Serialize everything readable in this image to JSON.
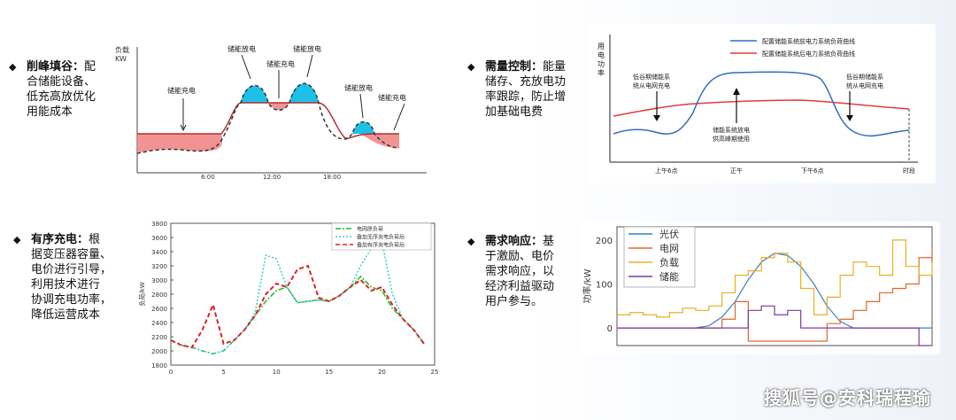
{
  "bullets": {
    "peak": {
      "title": "削峰填谷：",
      "lines": [
        "配",
        "合储能设备、",
        "低充高放优化",
        "用能成本"
      ]
    },
    "demand": {
      "title": "需量控制：",
      "lines": [
        "能量",
        "储存、充放电功",
        "率跟踪，防止增",
        "加基础电费"
      ]
    },
    "charging": {
      "title": "有序充电：",
      "lines": [
        "根",
        "据变压器容量、",
        "电价进行引导，",
        "利用技术进行",
        "协调充电功率，",
        "降低运营成本"
      ]
    },
    "response": {
      "title": "需求响应：",
      "lines": [
        "基",
        "于激励、电价",
        "需求响应，以",
        "经济利益驱动",
        "用户参与。"
      ]
    }
  },
  "chart1": {
    "ylabel_top": "负载",
    "ylabel_bot": "KW",
    "x_ticks": [
      "6:00",
      "12:00",
      "18:00"
    ],
    "annotations": [
      "储能充电",
      "储能放电",
      "储能充电",
      "储能放电",
      "储能放电",
      "储能充电"
    ]
  },
  "chart2": {
    "ylabel": [
      "用",
      "电",
      "功",
      "率"
    ],
    "legend": [
      "配置储能系统前电力系统负荷曲线",
      "配置储能系统后电力系统负荷曲线"
    ],
    "colors": {
      "before": "#2f6fbf",
      "after": "#e23b3b"
    },
    "annot_left": [
      "低谷期储能系",
      "统从电网充电"
    ],
    "annot_right": [
      "低谷期储能系",
      "统从电网充电"
    ],
    "annot_mid": [
      "储能系统放电",
      "供高峰期使用"
    ],
    "x_ticks": [
      "上午6点",
      "正午",
      "下午6点",
      "时段"
    ]
  },
  "chart_data": [
    {
      "type": "line",
      "title": "",
      "ylabel": "负荷/kW",
      "xlim": [
        0,
        25
      ],
      "ylim": [
        1800,
        3800
      ],
      "x_ticks": [
        "0",
        "5",
        "10",
        "15",
        "20",
        "25"
      ],
      "y_ticks": [
        "1800",
        "2000",
        "2200",
        "2400",
        "2600",
        "2800",
        "3000",
        "3200",
        "3400",
        "3600",
        "3800"
      ],
      "x": [
        0,
        1,
        2,
        3,
        4,
        5,
        6,
        7,
        8,
        9,
        10,
        11,
        12,
        13,
        14,
        15,
        16,
        17,
        18,
        19,
        20,
        21,
        22,
        23,
        24
      ],
      "series": [
        {
          "name": "电网原负荷",
          "values": [
            2150,
            2080,
            2050,
            2000,
            1960,
            2000,
            2150,
            2300,
            2500,
            2700,
            2850,
            2900,
            2680,
            2700,
            2720,
            2700,
            2780,
            2900,
            3050,
            2900,
            2850,
            2600,
            2450,
            2300,
            2100
          ]
        },
        {
          "name": "叠加无序充电负荷后",
          "values": [
            2150,
            2080,
            2050,
            2000,
            1960,
            2000,
            2150,
            2300,
            2550,
            3350,
            3300,
            2900,
            2680,
            2700,
            2720,
            2700,
            2780,
            2900,
            3200,
            3450,
            3550,
            2800,
            2450,
            2300,
            2100
          ]
        },
        {
          "name": "叠加有序充电负荷后",
          "values": [
            2150,
            2080,
            2050,
            2300,
            2650,
            2100,
            2150,
            2300,
            2500,
            2800,
            2950,
            2900,
            3150,
            3200,
            2750,
            2700,
            2780,
            2900,
            3000,
            2850,
            2900,
            2650,
            2450,
            2300,
            2100
          ]
        }
      ],
      "colors": [
        "#22bb22",
        "#33cccc",
        "#dd2222"
      ]
    },
    {
      "type": "line",
      "title": "",
      "ylabel": "功率/kW",
      "ylim": [
        -40,
        230
      ],
      "y_ticks": [
        "0",
        "100",
        "200"
      ],
      "x": [
        0,
        1,
        2,
        3,
        4,
        5,
        6,
        7,
        8,
        9,
        10,
        11,
        12,
        13,
        14,
        15,
        16,
        17,
        18,
        19,
        20,
        21,
        22,
        23,
        24
      ],
      "series": [
        {
          "name": "光伏",
          "values": [
            0,
            0,
            0,
            0,
            0,
            0,
            0,
            5,
            25,
            60,
            110,
            150,
            170,
            165,
            140,
            100,
            50,
            15,
            0,
            0,
            0,
            0,
            0,
            0,
            0
          ]
        },
        {
          "name": "电网",
          "values": [
            0,
            0,
            0,
            0,
            0,
            0,
            0,
            0,
            20,
            60,
            -30,
            -30,
            -30,
            -30,
            -30,
            -30,
            10,
            20,
            40,
            60,
            80,
            90,
            100,
            160,
            180
          ]
        },
        {
          "name": "负载",
          "values": [
            30,
            35,
            30,
            25,
            35,
            45,
            40,
            50,
            80,
            120,
            130,
            160,
            170,
            150,
            90,
            30,
            70,
            120,
            150,
            140,
            120,
            200,
            140,
            120,
            150
          ]
        },
        {
          "name": "储能",
          "values": [
            0,
            0,
            0,
            0,
            0,
            0,
            0,
            0,
            0,
            0,
            40,
            50,
            30,
            40,
            0,
            0,
            0,
            0,
            0,
            0,
            0,
            0,
            0,
            -40,
            -40
          ]
        }
      ],
      "colors": [
        "#3a7fc4",
        "#e0662a",
        "#e8b020",
        "#7a3aa0"
      ]
    }
  ],
  "watermark": "搜狐号@安科瑞程瑜"
}
